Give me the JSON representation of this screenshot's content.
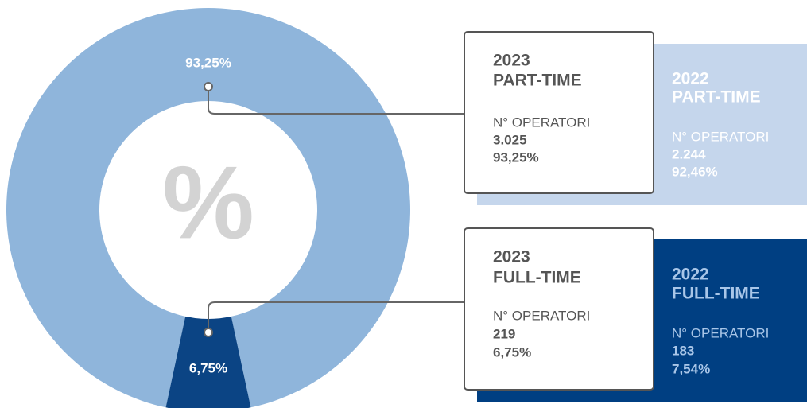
{
  "chart_data": {
    "type": "donut",
    "center_label": "%",
    "values": [
      93.25,
      6.75
    ],
    "value_labels": [
      "93,25%",
      "6,75%"
    ],
    "colors": [
      "#8fb5db",
      "#0b4484"
    ]
  },
  "panels": [
    {
      "year": "2023",
      "title": "PART-TIME",
      "metric": "N° OPERATORI",
      "count": "3.025",
      "share": "93,25%"
    },
    {
      "year": "2022",
      "title": "PART-TIME",
      "metric": "N° OPERATORI",
      "count": "2.244",
      "share": "92,46%"
    },
    {
      "year": "2023",
      "title": "FULL-TIME",
      "metric": "N° OPERATORI",
      "count": "219",
      "share": "6,75%"
    },
    {
      "year": "2022",
      "title": "FULL-TIME",
      "metric": "N° OPERATORI",
      "count": "183",
      "share": "7,54%"
    }
  ]
}
